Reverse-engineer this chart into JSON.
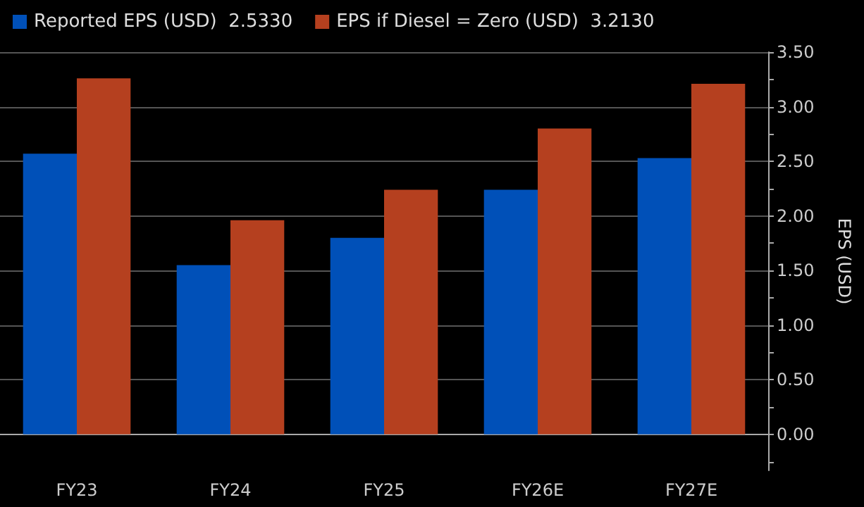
{
  "chart_data": {
    "type": "bar",
    "ylabel": "EPS (USD)",
    "categories": [
      "FY23",
      "FY24",
      "FY25",
      "FY26E",
      "FY27E"
    ],
    "series": [
      {
        "name": "Reported EPS (USD)  2.5330",
        "color": "#0050b8",
        "values": [
          2.57,
          1.55,
          1.8,
          2.24,
          2.53
        ]
      },
      {
        "name": "EPS if Diesel = Zero (USD)  3.2130",
        "color": "#b5401f",
        "values": [
          3.26,
          1.96,
          2.24,
          2.8,
          3.21
        ]
      }
    ],
    "ylim": [
      -0.33,
      3.5
    ],
    "yticks": [
      {
        "value": -0.25,
        "label": null
      },
      {
        "value": 0,
        "label": "0.00"
      },
      {
        "value": 0.25,
        "label": null
      },
      {
        "value": 0.5,
        "label": "0.50"
      },
      {
        "value": 0.75,
        "label": null
      },
      {
        "value": 1,
        "label": "1.00"
      },
      {
        "value": 1.25,
        "label": null
      },
      {
        "value": 1.5,
        "label": "1.50"
      },
      {
        "value": 1.75,
        "label": null
      },
      {
        "value": 2,
        "label": "2.00"
      },
      {
        "value": 2.25,
        "label": null
      },
      {
        "value": 2.5,
        "label": "2.50"
      },
      {
        "value": 2.75,
        "label": null
      },
      {
        "value": 3,
        "label": "3.00"
      },
      {
        "value": 3.25,
        "label": null
      },
      {
        "value": 3.5,
        "label": "3.50"
      }
    ],
    "grid": "y",
    "legend": "top left"
  }
}
